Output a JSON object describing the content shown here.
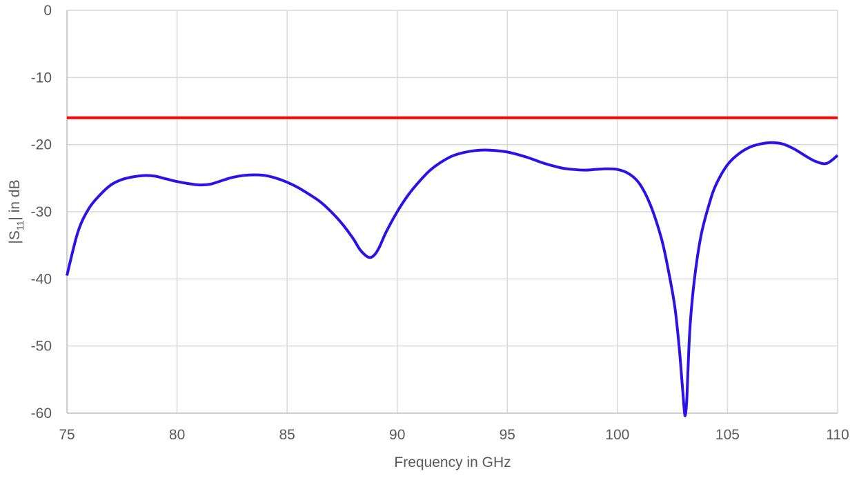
{
  "chart_data": {
    "type": "line",
    "xlabel": "Frequency in GHz",
    "ylabel": {
      "prefix": "|S",
      "subscript": "11",
      "suffix": "| in dB"
    },
    "xlim": [
      75,
      110
    ],
    "ylim": [
      -60,
      0
    ],
    "x_ticks": [
      75,
      80,
      85,
      90,
      95,
      100,
      105,
      110
    ],
    "y_ticks": [
      0,
      -10,
      -20,
      -30,
      -40,
      -50,
      -60
    ],
    "grid": true,
    "legend": "none",
    "series": [
      {
        "color": "#2a12e8",
        "x": [
          75,
          75.5,
          76,
          76.5,
          77,
          77.5,
          78,
          78.5,
          79,
          79.5,
          80,
          80.5,
          81,
          81.5,
          82,
          82.5,
          83,
          83.5,
          84,
          84.5,
          85,
          85.5,
          86,
          86.5,
          87,
          87.5,
          88,
          88.3,
          88.6,
          88.8,
          89,
          89.2,
          89.5,
          90,
          90.5,
          91,
          91.5,
          92,
          92.5,
          93,
          93.5,
          94,
          94.5,
          95,
          95.5,
          96,
          96.5,
          97,
          97.5,
          98,
          98.5,
          99,
          99.5,
          100,
          100.5,
          101,
          101.5,
          102,
          102.3,
          102.6,
          102.8,
          102.95,
          103.05,
          103.1,
          103.15,
          103.2,
          103.3,
          103.5,
          103.8,
          104.2,
          104.5,
          105,
          105.5,
          106,
          106.5,
          107,
          107.5,
          108,
          108.5,
          109,
          109.5,
          110
        ],
        "y": [
          -39.5,
          -33.0,
          -29.5,
          -27.5,
          -26.0,
          -25.2,
          -24.8,
          -24.6,
          -24.7,
          -25.1,
          -25.5,
          -25.8,
          -26.0,
          -25.9,
          -25.4,
          -24.9,
          -24.6,
          -24.5,
          -24.6,
          -25.0,
          -25.6,
          -26.4,
          -27.4,
          -28.5,
          -30.0,
          -31.8,
          -34.0,
          -35.6,
          -36.6,
          -36.8,
          -36.3,
          -35.2,
          -33.0,
          -30.0,
          -27.5,
          -25.5,
          -23.8,
          -22.6,
          -21.7,
          -21.2,
          -20.9,
          -20.8,
          -20.9,
          -21.1,
          -21.5,
          -22.0,
          -22.6,
          -23.1,
          -23.5,
          -23.7,
          -23.8,
          -23.7,
          -23.6,
          -23.7,
          -24.3,
          -25.8,
          -29.0,
          -34.0,
          -38.5,
          -44.0,
          -50.0,
          -56.0,
          -60.0,
          -60.0,
          -58.0,
          -54.0,
          -47.0,
          -40.0,
          -33.5,
          -28.5,
          -25.8,
          -23.0,
          -21.4,
          -20.4,
          -19.9,
          -19.7,
          -19.9,
          -20.6,
          -21.6,
          -22.5,
          -22.8,
          -21.6
        ]
      },
      {
        "color": "#ff0000",
        "x": [
          75,
          110
        ],
        "y": [
          -16,
          -16
        ]
      }
    ]
  }
}
